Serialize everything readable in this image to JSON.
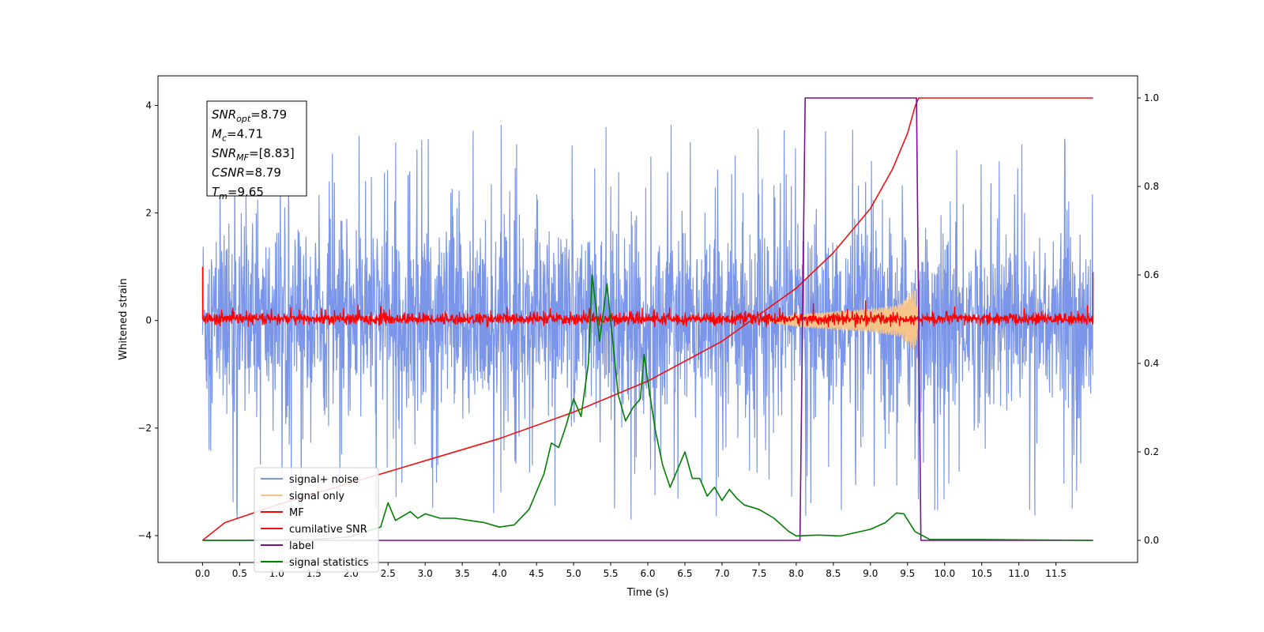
{
  "chart_data": {
    "type": "line",
    "title": "",
    "xlabel": "Time (s)",
    "ylabel_left": "Whitened strain",
    "ylabel_right": "",
    "xlim": [
      -0.6,
      12.6
    ],
    "ylim_left": [
      -4.5,
      4.55
    ],
    "ylim_right": [
      -0.05,
      1.05
    ],
    "x_ticks": [
      "0.0",
      "0.5",
      "1.0",
      "1.5",
      "2.0",
      "2.5",
      "3.0",
      "3.5",
      "4.0",
      "4.5",
      "5.0",
      "5.5",
      "6.0",
      "6.5",
      "7.0",
      "7.5",
      "8.0",
      "8.5",
      "9.0",
      "9.5",
      "10.0",
      "10.5",
      "11.0",
      "11.5"
    ],
    "y_ticks_left": [
      -4,
      -2,
      0,
      2,
      4
    ],
    "y_ticks_right": [
      "0.0",
      "0.2",
      "0.4",
      "0.6",
      "0.8",
      "1.0"
    ],
    "grid": false,
    "legend_placement": "lower-left",
    "info_box": [
      {
        "var": "SNR",
        "sub": "opt",
        "value": "=8.79"
      },
      {
        "var": "M",
        "sub": "c",
        "value": "=4.71"
      },
      {
        "var": "SNR",
        "sub": "MF",
        "value": "=[8.83]"
      },
      {
        "var": "CSNR",
        "sub": "",
        "value": "=8.79"
      },
      {
        "var": "T",
        "sub": "m",
        "value": "=9.65"
      }
    ],
    "series": [
      {
        "name": "signal+ noise",
        "axis": "left",
        "color": "#7b96e8",
        "kind": "noise",
        "x_range": [
          0,
          12
        ],
        "envelope": [
          -2.2,
          2.2
        ],
        "spikes": 3.7
      },
      {
        "name": "signal only",
        "axis": "left",
        "color": "#f5c48a",
        "kind": "chirp_envelope",
        "x_range": [
          7.6,
          9.65
        ],
        "amplitude_points": [
          [
            7.6,
            0.02
          ],
          [
            8.0,
            0.12
          ],
          [
            8.5,
            0.17
          ],
          [
            9.0,
            0.22
          ],
          [
            9.4,
            0.3
          ],
          [
            9.6,
            0.6
          ],
          [
            9.65,
            0.0
          ]
        ]
      },
      {
        "name": "MF",
        "axis": "left",
        "color": "#ff0000",
        "kind": "noise",
        "x_range": [
          0,
          12
        ],
        "envelope": [
          -0.12,
          0.18
        ],
        "spikes": 0.35
      },
      {
        "name": "cumilative SNR",
        "axis": "right",
        "color": "#ee1111",
        "kind": "line",
        "points": [
          [
            0,
            0.0
          ],
          [
            0.3,
            0.04
          ],
          [
            1.0,
            0.08
          ],
          [
            2.0,
            0.13
          ],
          [
            3.0,
            0.18
          ],
          [
            4.0,
            0.23
          ],
          [
            5.0,
            0.29
          ],
          [
            6.0,
            0.36
          ],
          [
            7.0,
            0.45
          ],
          [
            7.5,
            0.51
          ],
          [
            8.0,
            0.57
          ],
          [
            8.5,
            0.65
          ],
          [
            9.0,
            0.75
          ],
          [
            9.3,
            0.84
          ],
          [
            9.5,
            0.92
          ],
          [
            9.6,
            0.98
          ],
          [
            9.65,
            1.0
          ],
          [
            12.0,
            1.0
          ]
        ]
      },
      {
        "name": "label",
        "axis": "right",
        "color": "#7a0f91",
        "kind": "step",
        "points": [
          [
            0,
            0.0
          ],
          [
            8.05,
            0.0
          ],
          [
            8.12,
            1.0
          ],
          [
            9.62,
            1.0
          ],
          [
            9.68,
            0.0
          ],
          [
            12.0,
            0.0
          ]
        ]
      },
      {
        "name": "signal statistics",
        "axis": "right",
        "color": "#007f00",
        "kind": "line",
        "points": [
          [
            0,
            0.0
          ],
          [
            0.5,
            0.0
          ],
          [
            1.0,
            0.001
          ],
          [
            1.5,
            0.002
          ],
          [
            2.0,
            0.008
          ],
          [
            2.2,
            0.02
          ],
          [
            2.4,
            0.03
          ],
          [
            2.5,
            0.085
          ],
          [
            2.6,
            0.045
          ],
          [
            2.7,
            0.055
          ],
          [
            2.8,
            0.065
          ],
          [
            2.9,
            0.05
          ],
          [
            3.0,
            0.06
          ],
          [
            3.2,
            0.05
          ],
          [
            3.4,
            0.05
          ],
          [
            3.6,
            0.045
          ],
          [
            3.8,
            0.04
          ],
          [
            4.0,
            0.03
          ],
          [
            4.2,
            0.035
          ],
          [
            4.4,
            0.07
          ],
          [
            4.6,
            0.15
          ],
          [
            4.7,
            0.22
          ],
          [
            4.8,
            0.21
          ],
          [
            4.9,
            0.26
          ],
          [
            5.0,
            0.32
          ],
          [
            5.1,
            0.28
          ],
          [
            5.2,
            0.4
          ],
          [
            5.25,
            0.6
          ],
          [
            5.3,
            0.53
          ],
          [
            5.35,
            0.45
          ],
          [
            5.45,
            0.58
          ],
          [
            5.6,
            0.33
          ],
          [
            5.7,
            0.27
          ],
          [
            5.8,
            0.3
          ],
          [
            5.9,
            0.32
          ],
          [
            5.95,
            0.42
          ],
          [
            6.0,
            0.36
          ],
          [
            6.1,
            0.25
          ],
          [
            6.2,
            0.17
          ],
          [
            6.3,
            0.12
          ],
          [
            6.4,
            0.16
          ],
          [
            6.5,
            0.2
          ],
          [
            6.6,
            0.14
          ],
          [
            6.7,
            0.14
          ],
          [
            6.8,
            0.1
          ],
          [
            6.9,
            0.12
          ],
          [
            7.0,
            0.09
          ],
          [
            7.1,
            0.115
          ],
          [
            7.2,
            0.095
          ],
          [
            7.3,
            0.08
          ],
          [
            7.5,
            0.07
          ],
          [
            7.7,
            0.05
          ],
          [
            7.9,
            0.02
          ],
          [
            8.0,
            0.01
          ],
          [
            8.3,
            0.012
          ],
          [
            8.6,
            0.01
          ],
          [
            9.0,
            0.025
          ],
          [
            9.2,
            0.04
          ],
          [
            9.35,
            0.062
          ],
          [
            9.45,
            0.06
          ],
          [
            9.6,
            0.02
          ],
          [
            9.8,
            0.002
          ],
          [
            10.5,
            0.002
          ],
          [
            12.0,
            0.0
          ]
        ]
      }
    ]
  }
}
